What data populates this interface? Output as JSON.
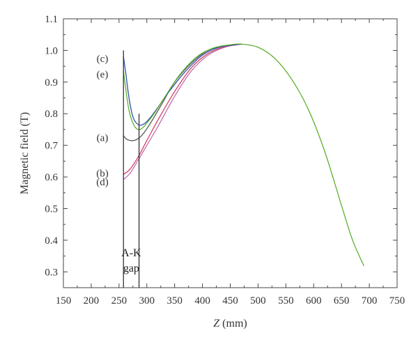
{
  "chart_data": {
    "type": "line",
    "xlabel_prefix": "Z",
    "xlabel_suffix": " (mm)",
    "ylabel": "Magnetic field (T)",
    "xlim": [
      150,
      750
    ],
    "ylim": [
      0.25,
      1.1
    ],
    "xticks": [
      150,
      200,
      250,
      300,
      350,
      400,
      450,
      500,
      550,
      600,
      650,
      700,
      750
    ],
    "yticks": [
      0.3,
      0.4,
      0.5,
      0.6,
      0.7,
      0.8,
      0.9,
      1.0,
      1.1
    ],
    "xtick_labels": [
      "150",
      "200",
      "250",
      "300",
      "350",
      "400",
      "450",
      "500",
      "550",
      "600",
      "650",
      "700",
      "750"
    ],
    "ytick_labels": [
      "0.3",
      "0.4",
      "0.5",
      "0.6",
      "0.7",
      "0.8",
      "0.9",
      "1.0",
      "1.1"
    ],
    "grid": false,
    "annotation": {
      "line1": "A-K",
      "line2": "gap",
      "x_lines": [
        258,
        286
      ],
      "x_lines_bottom": 0.25,
      "x_lines_top": [
        1.0,
        0.8
      ]
    },
    "series": [
      {
        "label": "(a)",
        "color": "#555555",
        "label_value": 0.725,
        "x": [
          258,
          265,
          275,
          285,
          295,
          310,
          330,
          350,
          380,
          410,
          440,
          470
        ],
        "y": [
          0.73,
          0.718,
          0.715,
          0.722,
          0.74,
          0.78,
          0.84,
          0.9,
          0.96,
          1.0,
          1.015,
          1.02
        ]
      },
      {
        "label": "(b)",
        "color": "#d04060",
        "label_value": 0.612,
        "x": [
          258,
          270,
          285,
          300,
          320,
          350,
          380,
          410,
          440,
          470
        ],
        "y": [
          0.608,
          0.625,
          0.665,
          0.715,
          0.78,
          0.87,
          0.945,
          0.99,
          1.012,
          1.02
        ]
      },
      {
        "label": "(c)",
        "color": "#3050b0",
        "label_value": 0.975,
        "x": [
          258,
          262,
          268,
          275,
          285,
          295,
          305,
          320,
          340,
          370,
          400,
          430,
          470
        ],
        "y": [
          0.98,
          0.93,
          0.85,
          0.79,
          0.765,
          0.768,
          0.785,
          0.82,
          0.87,
          0.935,
          0.985,
          1.01,
          1.02
        ]
      },
      {
        "label": "(d)",
        "color": "#c070b0",
        "label_value": 0.585,
        "x": [
          258,
          270,
          285,
          300,
          320,
          350,
          380,
          410,
          440,
          470
        ],
        "y": [
          0.592,
          0.612,
          0.655,
          0.7,
          0.76,
          0.855,
          0.935,
          0.985,
          1.01,
          1.02
        ]
      },
      {
        "label": "(e)",
        "color": "#60b030",
        "label_value": 0.925,
        "x": [
          258,
          262,
          268,
          275,
          282,
          290,
          300,
          315,
          335,
          360,
          390,
          420,
          450,
          470,
          500,
          530,
          560,
          590,
          620,
          650,
          670,
          690
        ],
        "y": [
          0.935,
          0.88,
          0.81,
          0.77,
          0.752,
          0.752,
          0.77,
          0.805,
          0.86,
          0.925,
          0.98,
          1.008,
          1.018,
          1.02,
          1.01,
          0.975,
          0.91,
          0.815,
          0.68,
          0.51,
          0.4,
          0.32
        ]
      }
    ]
  }
}
